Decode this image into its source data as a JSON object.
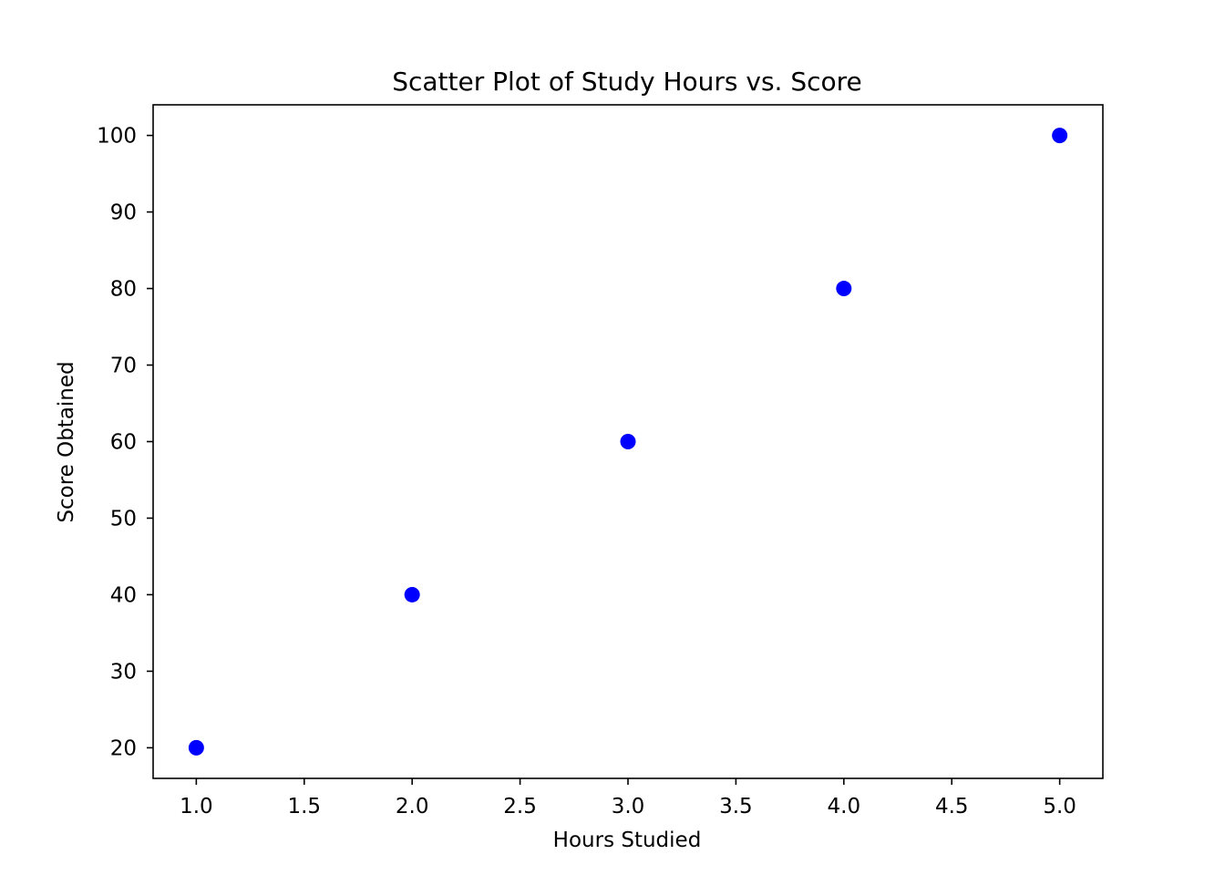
{
  "chart_data": {
    "type": "scatter",
    "title": "Scatter Plot of Study Hours vs. Score",
    "xlabel": "Hours Studied",
    "ylabel": "Score Obtained",
    "x": [
      1,
      2,
      3,
      4,
      5
    ],
    "y": [
      20,
      40,
      60,
      80,
      100
    ],
    "xlim": [
      0.8,
      5.2
    ],
    "ylim": [
      16,
      104
    ],
    "xticks": [
      1.0,
      1.5,
      2.0,
      2.5,
      3.0,
      3.5,
      4.0,
      4.5,
      5.0
    ],
    "xtick_labels": [
      "1.0",
      "1.5",
      "2.0",
      "2.5",
      "3.0",
      "3.5",
      "4.0",
      "4.5",
      "5.0"
    ],
    "yticks": [
      20,
      30,
      40,
      50,
      60,
      70,
      80,
      90,
      100
    ],
    "ytick_labels": [
      "20",
      "30",
      "40",
      "50",
      "60",
      "70",
      "80",
      "90",
      "100"
    ],
    "grid": false,
    "marker_color": "#0000ff"
  }
}
